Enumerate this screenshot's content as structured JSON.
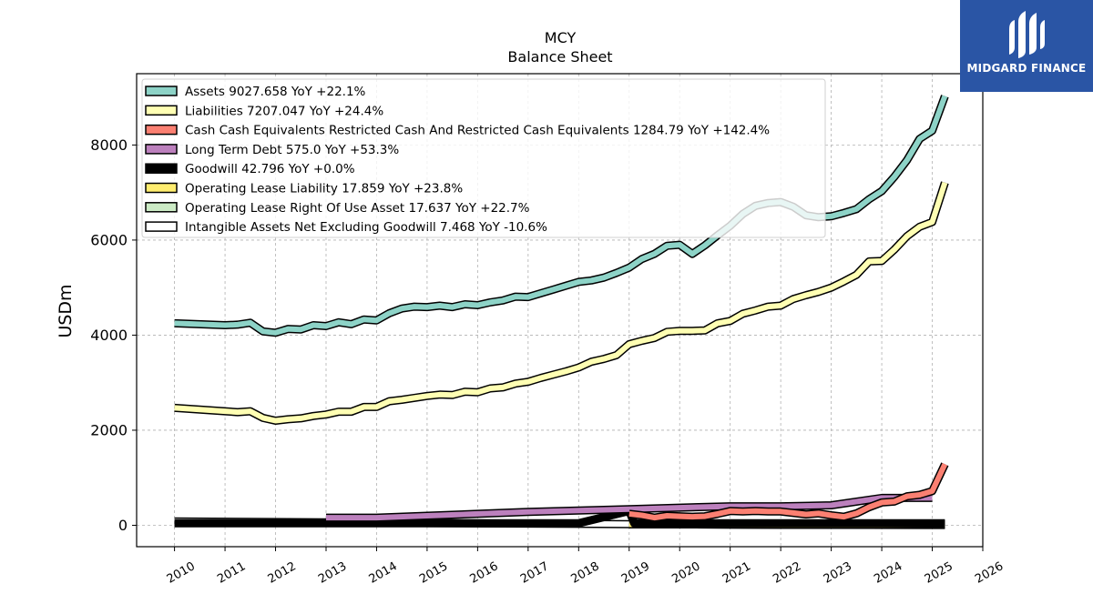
{
  "chart_data": {
    "type": "line",
    "title": "MCY",
    "subtitle": "Balance  Sheet",
    "ylabel": "USDm",
    "xlabel": "",
    "xlim": [
      2009.25,
      2026.0
    ],
    "ylim": [
      -450,
      9500
    ],
    "x_ticks": [
      "2010",
      "2011",
      "2012",
      "2013",
      "2014",
      "2015",
      "2016",
      "2017",
      "2018",
      "2019",
      "2020",
      "2021",
      "2022",
      "2023",
      "2024",
      "2025",
      "2026"
    ],
    "y_ticks": [
      0,
      2000,
      4000,
      6000,
      8000
    ],
    "grid": true,
    "legend_position": "upper-left",
    "series": [
      {
        "name": "Assets  9027.658 YoY +22.1%",
        "color": "#8dd3c7",
        "x": [
          2010.0,
          2011.0,
          2011.25,
          2011.5,
          2011.75,
          2012.0,
          2012.25,
          2012.5,
          2012.75,
          2013.0,
          2013.25,
          2013.5,
          2013.75,
          2014.0,
          2014.25,
          2014.5,
          2014.75,
          2015.0,
          2015.25,
          2015.5,
          2015.75,
          2016.0,
          2016.25,
          2016.5,
          2016.75,
          2017.0,
          2017.25,
          2017.5,
          2017.75,
          2018.0,
          2018.25,
          2018.5,
          2018.75,
          2019.0,
          2019.25,
          2019.5,
          2019.75,
          2020.0,
          2020.25,
          2020.5,
          2020.75,
          2021.0,
          2021.25,
          2021.5,
          2021.75,
          2022.0,
          2022.25,
          2022.5,
          2022.75,
          2023.0,
          2023.25,
          2023.5,
          2023.75,
          2024.0,
          2024.25,
          2024.5,
          2024.75,
          2025.0,
          2025.25
        ],
        "values": [
          4250,
          4210,
          4220,
          4260,
          4080,
          4050,
          4130,
          4120,
          4210,
          4190,
          4270,
          4230,
          4330,
          4310,
          4460,
          4560,
          4600,
          4590,
          4620,
          4590,
          4650,
          4630,
          4690,
          4730,
          4810,
          4800,
          4880,
          4960,
          5040,
          5120,
          5150,
          5210,
          5310,
          5420,
          5600,
          5710,
          5880,
          5900,
          5710,
          5890,
          6100,
          6300,
          6550,
          6720,
          6780,
          6800,
          6700,
          6520,
          6480,
          6500,
          6570,
          6650,
          6860,
          7030,
          7330,
          7680,
          8130,
          8300,
          9027.658
        ]
      },
      {
        "name": "Liabilities  7207.047 YoY +24.4%",
        "color": "#ffffb3",
        "x": [
          2010.0,
          2011.0,
          2011.25,
          2011.5,
          2011.75,
          2012.0,
          2012.25,
          2012.5,
          2012.75,
          2013.0,
          2013.25,
          2013.5,
          2013.75,
          2014.0,
          2014.25,
          2014.5,
          2014.75,
          2015.0,
          2015.25,
          2015.5,
          2015.75,
          2016.0,
          2016.25,
          2016.5,
          2016.75,
          2017.0,
          2017.25,
          2017.5,
          2017.75,
          2018.0,
          2018.25,
          2018.5,
          2018.75,
          2019.0,
          2019.25,
          2019.5,
          2019.75,
          2020.0,
          2020.25,
          2020.5,
          2020.75,
          2021.0,
          2021.25,
          2021.5,
          2021.75,
          2022.0,
          2022.25,
          2022.5,
          2022.75,
          2023.0,
          2023.25,
          2023.5,
          2023.75,
          2024.0,
          2024.25,
          2024.5,
          2024.75,
          2025.0,
          2025.25
        ],
        "values": [
          2470,
          2400,
          2380,
          2400,
          2260,
          2200,
          2230,
          2250,
          2300,
          2330,
          2390,
          2390,
          2490,
          2490,
          2610,
          2640,
          2680,
          2720,
          2750,
          2740,
          2810,
          2800,
          2880,
          2900,
          2980,
          3020,
          3100,
          3170,
          3240,
          3320,
          3440,
          3500,
          3580,
          3810,
          3880,
          3940,
          4070,
          4090,
          4090,
          4100,
          4250,
          4300,
          4450,
          4520,
          4600,
          4620,
          4760,
          4840,
          4910,
          5000,
          5130,
          5270,
          5550,
          5560,
          5800,
          6080,
          6280,
          6380,
          7207.047
        ]
      },
      {
        "name": "Cash Cash Equivalents Restricted Cash And Restricted Cash Equivalents  1284.79 YoY +142.4%",
        "color": "#fb8072",
        "x": [
          2019.0,
          2019.25,
          2019.5,
          2019.75,
          2020.0,
          2020.25,
          2020.5,
          2020.75,
          2021.0,
          2021.25,
          2021.5,
          2021.75,
          2022.0,
          2022.25,
          2022.5,
          2022.75,
          2023.0,
          2023.25,
          2023.5,
          2023.75,
          2024.0,
          2024.25,
          2024.5,
          2024.75,
          2025.0,
          2025.25
        ],
        "values": [
          240,
          210,
          160,
          200,
          190,
          180,
          190,
          240,
          300,
          290,
          300,
          290,
          290,
          260,
          230,
          250,
          210,
          180,
          250,
          380,
          480,
          500,
          610,
          640,
          720,
          1284.79
        ]
      },
      {
        "name": "Long Term Debt  575.0 YoY +53.3%",
        "color": "#bc80bd",
        "x": [
          2013.0,
          2014.0,
          2015.0,
          2016.0,
          2017.0,
          2018.0,
          2019.0,
          2020.0,
          2021.0,
          2022.0,
          2023.0,
          2024.0,
          2025.0
        ],
        "values": [
          160,
          160,
          200,
          240,
          280,
          310,
          340,
          370,
          400,
          400,
          420,
          575,
          575.0
        ]
      },
      {
        "name": "Goodwill  42.796 YoY +0.0%",
        "color": "#000000",
        "x": [
          2010.0,
          2018.0,
          2019.0,
          2019.1,
          2020.0,
          2025.25
        ],
        "values": [
          42.796,
          42.796,
          300,
          42.796,
          42.796,
          42.796
        ]
      },
      {
        "name": "Operating Lease Liability  17.859 YoY +23.8%",
        "color": "#ffed6f",
        "x": [
          2019.0,
          2020.0,
          2021.0,
          2022.0,
          2023.0,
          2024.0,
          2025.25
        ],
        "values": [
          20,
          18,
          16,
          15,
          14,
          14.4,
          17.859
        ]
      },
      {
        "name": "Operating Lease Right Of Use Asset  17.637 YoY +22.7%",
        "color": "#ccebc5",
        "x": [
          2019.0,
          2020.0,
          2021.0,
          2022.0,
          2023.0,
          2024.0,
          2025.25
        ],
        "values": [
          20,
          18,
          16,
          15,
          14,
          14.4,
          17.637
        ]
      },
      {
        "name": "Intangible Assets Net Excluding Goodwill  7.468 YoY -10.6%",
        "color": "#ffffff",
        "x": [
          2010.0,
          2013.0,
          2016.0,
          2019.0,
          2022.0,
          2025.25
        ],
        "values": [
          80,
          60,
          40,
          25,
          12,
          7.468
        ]
      }
    ]
  },
  "logo": {
    "text": "MIDGARD FINANCE"
  }
}
